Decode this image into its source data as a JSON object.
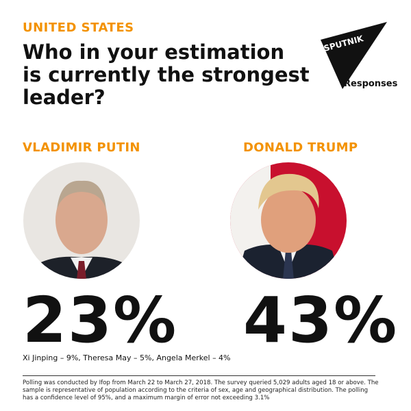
{
  "header": {
    "region": "UNITED STATES",
    "title": [
      "Who in your estimation",
      "is currently the strongest",
      "leader?"
    ]
  },
  "logo": {
    "brand": "SPUTNIK",
    "label": "Responses"
  },
  "leaders": [
    {
      "name": "VLADIMIR PUTIN",
      "percent": "23%"
    },
    {
      "name": "DONALD TRUMP",
      "percent": "43%"
    }
  ],
  "others": "Xi Jinping – 9%, Theresa May – 5%, Angela Merkel – 4%",
  "footnote": "Polling was conducted by Ifop from March 22 to March 27, 2018. The survey queried 5,029 adults aged 18 or above. The sample is representative of population according to the criteria of sex, age and geographical distribution. The polling has a confidence level of 95%, and a maximum margin of error not exceeding 3.1%"
}
